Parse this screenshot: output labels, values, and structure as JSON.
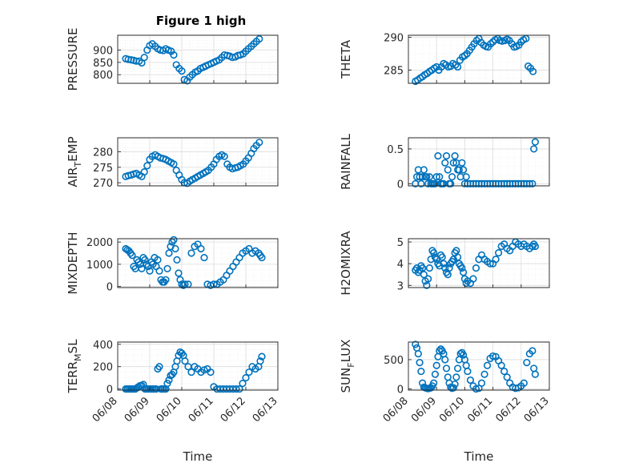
{
  "figure": {
    "title": "Figure 1 high"
  },
  "chart_data": [
    {
      "type": "scatter",
      "name": "PRESSURE",
      "ylabel": "PRESSURE",
      "ylim": [
        765,
        960
      ],
      "yticks": [
        800,
        850,
        900
      ],
      "xlim": [
        0,
        5
      ],
      "xticks": [],
      "xlabel": "",
      "x": [
        0.25,
        0.33,
        0.42,
        0.5,
        0.58,
        0.67,
        0.75,
        0.83,
        0.92,
        1.0,
        1.08,
        1.17,
        1.25,
        1.33,
        1.42,
        1.5,
        1.58,
        1.67,
        1.75,
        1.83,
        1.92,
        2.0,
        2.08,
        2.17,
        2.25,
        2.33,
        2.42,
        2.5,
        2.58,
        2.67,
        2.75,
        2.83,
        2.92,
        3.0,
        3.08,
        3.17,
        3.25,
        3.33,
        3.42,
        3.5,
        3.58,
        3.67,
        3.75,
        3.83,
        3.92,
        4.0,
        4.08,
        4.17,
        4.25,
        4.33,
        4.42
      ],
      "y": [
        865,
        862,
        860,
        858,
        855,
        855,
        848,
        870,
        900,
        918,
        925,
        915,
        905,
        900,
        898,
        905,
        900,
        895,
        880,
        840,
        825,
        815,
        780,
        775,
        790,
        800,
        810,
        815,
        825,
        830,
        835,
        840,
        845,
        850,
        855,
        860,
        870,
        880,
        878,
        875,
        870,
        872,
        878,
        880,
        885,
        895,
        905,
        915,
        925,
        935,
        945
      ]
    },
    {
      "type": "scatter",
      "name": "THETA",
      "ylabel": "THETA",
      "ylim": [
        283,
        290.3
      ],
      "yticks": [
        285,
        290
      ],
      "xlim": [
        0,
        5
      ],
      "xticks": [],
      "xlabel": "",
      "x": [
        0.25,
        0.33,
        0.42,
        0.5,
        0.58,
        0.67,
        0.75,
        0.83,
        0.92,
        1.0,
        1.08,
        1.17,
        1.25,
        1.33,
        1.42,
        1.5,
        1.58,
        1.67,
        1.75,
        1.83,
        1.92,
        2.0,
        2.08,
        2.17,
        2.25,
        2.33,
        2.42,
        2.5,
        2.58,
        2.67,
        2.75,
        2.83,
        2.92,
        3.0,
        3.08,
        3.17,
        3.25,
        3.33,
        3.42,
        3.5,
        3.58,
        3.67,
        3.75,
        3.83,
        3.92,
        4.0,
        4.08,
        4.17,
        4.25,
        4.33,
        4.42
      ],
      "y": [
        283.3,
        283.5,
        283.8,
        284.0,
        284.3,
        284.5,
        284.8,
        285.0,
        285.3,
        285.5,
        285.0,
        285.5,
        286.0,
        285.8,
        285.5,
        285.6,
        286.0,
        285.8,
        285.5,
        286.5,
        287.0,
        287.2,
        287.5,
        288.0,
        288.5,
        289.0,
        289.5,
        289.8,
        289.2,
        288.8,
        288.6,
        288.5,
        289.0,
        289.3,
        289.6,
        289.8,
        289.5,
        289.4,
        289.5,
        289.7,
        289.5,
        289.0,
        288.5,
        288.6,
        288.8,
        289.3,
        289.6,
        289.8,
        285.6,
        285.3,
        284.8
      ]
    },
    {
      "type": "scatter",
      "name": "AIR_TEMP",
      "ylabel": "AIR_TEMP",
      "ylabel_parts": [
        "AIR",
        "T",
        "EMP"
      ],
      "ylim": [
        269,
        284.5
      ],
      "yticks": [
        270,
        275,
        280
      ],
      "xlim": [
        0,
        5
      ],
      "xticks": [],
      "xlabel": "",
      "x": [
        0.25,
        0.33,
        0.42,
        0.5,
        0.58,
        0.67,
        0.75,
        0.83,
        0.92,
        1.0,
        1.08,
        1.17,
        1.25,
        1.33,
        1.42,
        1.5,
        1.58,
        1.67,
        1.75,
        1.83,
        1.92,
        2.0,
        2.08,
        2.17,
        2.25,
        2.33,
        2.42,
        2.5,
        2.58,
        2.67,
        2.75,
        2.83,
        2.92,
        3.0,
        3.08,
        3.17,
        3.25,
        3.33,
        3.42,
        3.5,
        3.58,
        3.67,
        3.75,
        3.83,
        3.92,
        4.0,
        4.08,
        4.17,
        4.25,
        4.33,
        4.42
      ],
      "y": [
        272.0,
        272.3,
        272.5,
        272.8,
        273.0,
        272.5,
        272.0,
        273.5,
        275.5,
        277.5,
        278.5,
        279.0,
        278.5,
        278.0,
        277.8,
        277.5,
        277.0,
        276.5,
        276.0,
        274.0,
        272.5,
        271.0,
        270.0,
        269.8,
        270.5,
        271.0,
        271.5,
        272.0,
        272.5,
        273.0,
        273.5,
        274.0,
        275.0,
        276.0,
        277.5,
        278.5,
        279.0,
        278.5,
        276.0,
        275.0,
        274.5,
        274.8,
        275.0,
        275.5,
        276.0,
        277.0,
        278.0,
        279.5,
        281.0,
        282.0,
        283.0
      ]
    },
    {
      "type": "scatter",
      "name": "RAINFALL",
      "ylabel": "RAINFALL",
      "ylim": [
        -0.03,
        0.66
      ],
      "yticks": [
        0,
        0.5
      ],
      "xlim": [
        0,
        5
      ],
      "xticks": [],
      "xlabel": "",
      "x": [
        0.25,
        0.3,
        0.35,
        0.4,
        0.45,
        0.5,
        0.55,
        0.6,
        0.65,
        0.7,
        0.75,
        0.8,
        0.85,
        0.9,
        0.95,
        1.0,
        1.05,
        1.1,
        1.15,
        1.2,
        1.25,
        1.3,
        1.35,
        1.4,
        1.45,
        1.5,
        1.55,
        1.6,
        1.65,
        1.7,
        1.75,
        1.8,
        1.85,
        1.9,
        1.95,
        2.0,
        2.05,
        2.1,
        2.2,
        2.3,
        2.4,
        2.5,
        2.6,
        2.7,
        2.8,
        2.9,
        3.0,
        3.1,
        3.2,
        3.3,
        3.4,
        3.5,
        3.6,
        3.7,
        3.8,
        3.9,
        4.0,
        4.1,
        4.2,
        4.3,
        4.4,
        4.45,
        4.5
      ],
      "y": [
        0,
        0.1,
        0.2,
        0.1,
        0,
        0.1,
        0.2,
        0.1,
        0.1,
        0,
        0.1,
        0,
        0,
        0,
        0,
        0.1,
        0.4,
        0.1,
        0,
        0,
        0,
        0.3,
        0.4,
        0.2,
        0,
        0,
        0.1,
        0.3,
        0.4,
        0.3,
        0.2,
        0.2,
        0.1,
        0.3,
        0.2,
        0,
        0.1,
        0,
        0,
        0,
        0,
        0,
        0,
        0,
        0,
        0,
        0,
        0,
        0,
        0,
        0,
        0,
        0,
        0,
        0,
        0,
        0,
        0,
        0,
        0,
        0,
        0.5,
        0.6
      ]
    },
    {
      "type": "scatter",
      "name": "MIXDEPTH",
      "ylabel": "MIXDEPTH",
      "ylim": [
        -50,
        2150
      ],
      "yticks": [
        0,
        1000,
        2000
      ],
      "xlim": [
        0,
        5
      ],
      "xticks": [],
      "xlabel": "",
      "x": [
        0.25,
        0.3,
        0.35,
        0.4,
        0.45,
        0.5,
        0.55,
        0.6,
        0.65,
        0.7,
        0.75,
        0.8,
        0.85,
        0.9,
        0.95,
        1.0,
        1.05,
        1.1,
        1.15,
        1.2,
        1.25,
        1.3,
        1.35,
        1.4,
        1.45,
        1.5,
        1.55,
        1.6,
        1.65,
        1.7,
        1.75,
        1.8,
        1.85,
        1.9,
        1.95,
        2.0,
        2.05,
        2.1,
        2.2,
        2.3,
        2.4,
        2.5,
        2.6,
        2.7,
        2.8,
        2.9,
        3.0,
        3.1,
        3.2,
        3.3,
        3.4,
        3.5,
        3.6,
        3.7,
        3.8,
        3.9,
        4.0,
        4.1,
        4.2,
        4.3,
        4.4,
        4.45,
        4.5
      ],
      "y": [
        1700,
        1650,
        1600,
        1500,
        1400,
        900,
        800,
        1200,
        1100,
        1000,
        800,
        1300,
        1200,
        1000,
        900,
        700,
        1100,
        1000,
        1300,
        900,
        1200,
        700,
        300,
        200,
        200,
        300,
        800,
        1500,
        1800,
        2000,
        2100,
        1700,
        1200,
        600,
        300,
        100,
        50,
        100,
        100,
        1500,
        1800,
        1900,
        1700,
        1300,
        100,
        50,
        100,
        100,
        200,
        300,
        500,
        700,
        900,
        1100,
        1300,
        1500,
        1600,
        1700,
        1500,
        1600,
        1500,
        1400,
        1300
      ]
    },
    {
      "type": "scatter",
      "name": "H2OMIXRA",
      "ylabel": "H2OMIXRA",
      "ylim": [
        2.9,
        5.15
      ],
      "yticks": [
        3,
        4,
        5
      ],
      "xlim": [
        0,
        5
      ],
      "xticks": [],
      "xlabel": "",
      "x": [
        0.25,
        0.3,
        0.35,
        0.4,
        0.45,
        0.5,
        0.55,
        0.6,
        0.65,
        0.7,
        0.75,
        0.8,
        0.85,
        0.9,
        0.95,
        1.0,
        1.05,
        1.1,
        1.15,
        1.2,
        1.25,
        1.3,
        1.35,
        1.4,
        1.45,
        1.5,
        1.55,
        1.6,
        1.65,
        1.7,
        1.75,
        1.8,
        1.85,
        1.9,
        1.95,
        2.0,
        2.05,
        2.1,
        2.2,
        2.3,
        2.4,
        2.5,
        2.6,
        2.7,
        2.8,
        2.9,
        3.0,
        3.1,
        3.2,
        3.3,
        3.4,
        3.5,
        3.6,
        3.7,
        3.8,
        3.9,
        4.0,
        4.1,
        4.2,
        4.3,
        4.4,
        4.45,
        4.5
      ],
      "y": [
        3.7,
        3.8,
        3.6,
        3.7,
        3.9,
        3.8,
        3.5,
        3.2,
        3.0,
        3.3,
        3.8,
        4.2,
        4.6,
        4.5,
        4.3,
        4.2,
        4.0,
        3.9,
        4.4,
        4.3,
        4.0,
        3.8,
        3.6,
        3.5,
        3.8,
        4.0,
        4.1,
        4.2,
        4.5,
        4.6,
        4.3,
        4.0,
        3.9,
        3.8,
        3.6,
        3.3,
        3.1,
        3.2,
        3.1,
        3.3,
        3.8,
        4.2,
        4.4,
        4.2,
        4.1,
        4.0,
        4.0,
        4.2,
        4.5,
        4.8,
        4.9,
        4.7,
        4.6,
        4.8,
        5.0,
        4.9,
        4.8,
        4.9,
        4.8,
        4.7,
        4.8,
        4.9,
        4.8
      ]
    },
    {
      "type": "scatter",
      "name": "TERR_MSL",
      "ylabel": "TERR_MSL",
      "ylabel_parts": [
        "TERR",
        "M",
        "SL"
      ],
      "ylim": [
        -10,
        420
      ],
      "yticks": [
        0,
        200,
        400
      ],
      "xlim": [
        0,
        5
      ],
      "xticks": [
        "06/08",
        "06/09",
        "06/10",
        "06/11",
        "06/12",
        "06/13"
      ],
      "xlabel": "Time",
      "x": [
        0.25,
        0.3,
        0.35,
        0.4,
        0.45,
        0.5,
        0.55,
        0.6,
        0.65,
        0.7,
        0.75,
        0.8,
        0.85,
        0.9,
        0.95,
        1.0,
        1.05,
        1.1,
        1.15,
        1.2,
        1.25,
        1.3,
        1.35,
        1.4,
        1.45,
        1.5,
        1.55,
        1.6,
        1.65,
        1.7,
        1.75,
        1.8,
        1.85,
        1.9,
        1.95,
        2.0,
        2.05,
        2.1,
        2.2,
        2.3,
        2.4,
        2.5,
        2.6,
        2.7,
        2.8,
        2.9,
        3.0,
        3.1,
        3.2,
        3.3,
        3.4,
        3.5,
        3.6,
        3.7,
        3.8,
        3.9,
        4.0,
        4.1,
        4.2,
        4.3,
        4.4,
        4.45,
        4.5
      ],
      "y": [
        0,
        0,
        0,
        0,
        0,
        0,
        0,
        10,
        20,
        30,
        30,
        40,
        0,
        0,
        0,
        0,
        0,
        0,
        0,
        0,
        180,
        200,
        0,
        0,
        0,
        0,
        50,
        80,
        120,
        130,
        150,
        200,
        250,
        300,
        330,
        320,
        300,
        250,
        200,
        150,
        200,
        180,
        150,
        170,
        180,
        150,
        20,
        0,
        0,
        0,
        0,
        0,
        0,
        0,
        0,
        50,
        100,
        150,
        200,
        180,
        200,
        250,
        290
      ]
    },
    {
      "type": "scatter",
      "name": "SUN_FLUX",
      "ylabel": "SUN_FLUX",
      "ylabel_parts": [
        "SUN",
        "F",
        "LUX"
      ],
      "ylim": [
        -20,
        800
      ],
      "yticks": [
        0,
        500
      ],
      "xlim": [
        0,
        5
      ],
      "xticks": [
        "06/08",
        "06/09",
        "06/10",
        "06/11",
        "06/12",
        "06/13"
      ],
      "xlabel": "Time",
      "x": [
        0.25,
        0.3,
        0.35,
        0.4,
        0.45,
        0.5,
        0.55,
        0.6,
        0.65,
        0.7,
        0.75,
        0.8,
        0.85,
        0.9,
        0.95,
        1.0,
        1.05,
        1.1,
        1.15,
        1.2,
        1.25,
        1.3,
        1.35,
        1.4,
        1.45,
        1.5,
        1.55,
        1.6,
        1.65,
        1.7,
        1.75,
        1.8,
        1.85,
        1.9,
        1.95,
        2.0,
        2.05,
        2.1,
        2.2,
        2.3,
        2.4,
        2.5,
        2.6,
        2.7,
        2.8,
        2.9,
        3.0,
        3.1,
        3.2,
        3.3,
        3.4,
        3.5,
        3.6,
        3.7,
        3.8,
        3.9,
        4.0,
        4.1,
        4.2,
        4.3,
        4.4,
        4.45,
        4.5
      ],
      "y": [
        760,
        700,
        600,
        450,
        300,
        100,
        30,
        20,
        10,
        5,
        10,
        20,
        50,
        100,
        250,
        400,
        550,
        650,
        680,
        650,
        600,
        500,
        350,
        200,
        100,
        30,
        10,
        20,
        80,
        200,
        350,
        500,
        600,
        620,
        580,
        500,
        400,
        300,
        150,
        50,
        0,
        10,
        100,
        250,
        400,
        520,
        560,
        550,
        480,
        400,
        300,
        200,
        100,
        30,
        10,
        20,
        50,
        100,
        450,
        600,
        650,
        350,
        250
      ]
    }
  ]
}
